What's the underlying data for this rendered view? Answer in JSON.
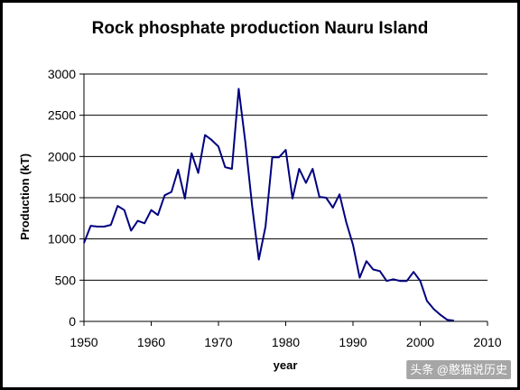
{
  "chart_data": {
    "type": "line",
    "title": "Rock phosphate production Nauru Island",
    "xlabel": "year",
    "ylabel": "Production (kT)",
    "xlim": [
      1950,
      2010
    ],
    "ylim": [
      0,
      3000
    ],
    "xticks": [
      1950,
      1960,
      1970,
      1980,
      1990,
      2000,
      2010
    ],
    "yticks": [
      0,
      500,
      1000,
      1500,
      2000,
      2500,
      3000
    ],
    "grid": "horizontal",
    "legend": "none",
    "series": [
      {
        "color": "#000080",
        "x": [
          1950,
          1951,
          1952,
          1953,
          1954,
          1955,
          1956,
          1957,
          1958,
          1959,
          1960,
          1961,
          1962,
          1963,
          1964,
          1965,
          1966,
          1967,
          1968,
          1969,
          1970,
          1971,
          1972,
          1973,
          1974,
          1975,
          1976,
          1977,
          1978,
          1979,
          1980,
          1981,
          1982,
          1983,
          1984,
          1985,
          1986,
          1987,
          1988,
          1989,
          1990,
          1991,
          1992,
          1993,
          1994,
          1995,
          1996,
          1997,
          1998,
          1999,
          2000,
          2001,
          2002,
          2003,
          2004,
          2005
        ],
        "y": [
          950,
          1160,
          1150,
          1150,
          1170,
          1400,
          1350,
          1100,
          1220,
          1190,
          1350,
          1290,
          1530,
          1570,
          1840,
          1490,
          2040,
          1800,
          2260,
          2200,
          2120,
          1870,
          1850,
          2820,
          2170,
          1400,
          750,
          1150,
          1990,
          1990,
          2080,
          1490,
          1850,
          1680,
          1850,
          1510,
          1500,
          1380,
          1540,
          1200,
          930,
          530,
          730,
          630,
          610,
          490,
          510,
          490,
          490,
          600,
          490,
          250,
          150,
          80,
          20,
          10
        ]
      }
    ]
  },
  "watermark": "头条 @憨猫说历史"
}
